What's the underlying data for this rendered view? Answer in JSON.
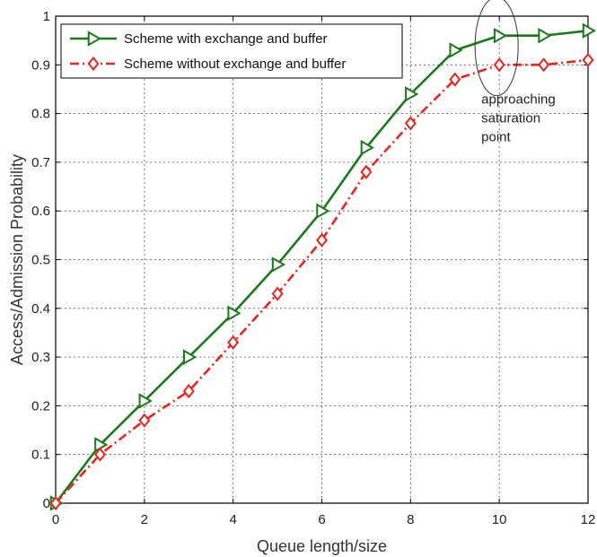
{
  "chart_data": {
    "type": "line",
    "title": "",
    "xlabel": "Queue length/size",
    "ylabel": "Access/Admission Probability",
    "xlim": [
      0,
      12
    ],
    "ylim": [
      0,
      1
    ],
    "xticks": [
      0,
      2,
      4,
      6,
      8,
      10,
      12
    ],
    "yticks": [
      0,
      0.1,
      0.2,
      0.3,
      0.4,
      0.5,
      0.6,
      0.7,
      0.8,
      0.9,
      1
    ],
    "xtick_labels": [
      "0",
      "2",
      "4",
      "6",
      "8",
      "10",
      "12"
    ],
    "ytick_labels": [
      "0",
      "0.1",
      "0.2",
      "0.3",
      "0.4",
      "0.5",
      "0.6",
      "0.7",
      "0.8",
      "0.9",
      "1"
    ],
    "grid": "dashed",
    "legend_position": "top-left",
    "x": [
      0,
      1,
      2,
      3,
      4,
      5,
      6,
      7,
      8,
      9,
      10,
      11,
      12
    ],
    "series": [
      {
        "name": "Scheme with exchange and buffer",
        "color": "#1a7a1a",
        "line_style": "solid",
        "marker": "triangle-right",
        "values": [
          0,
          0.12,
          0.21,
          0.3,
          0.39,
          0.49,
          0.6,
          0.73,
          0.84,
          0.93,
          0.96,
          0.96,
          0.97
        ]
      },
      {
        "name": "Scheme without exchange and buffer",
        "color": "#e8251e",
        "line_style": "dash-dot",
        "marker": "diamond",
        "values": [
          0,
          0.1,
          0.17,
          0.23,
          0.33,
          0.43,
          0.54,
          0.68,
          0.78,
          0.87,
          0.9,
          0.9,
          0.91
        ]
      }
    ],
    "annotations": [
      {
        "text_lines": [
          "approaching",
          "saturation",
          "point"
        ],
        "x": 10,
        "y": 0.96,
        "shape": "ellipse"
      }
    ]
  }
}
